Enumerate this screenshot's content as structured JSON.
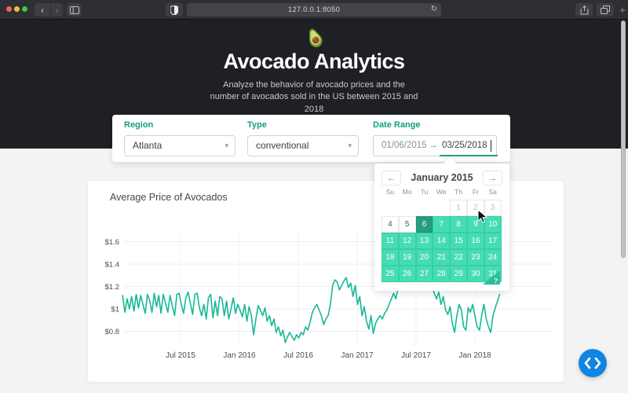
{
  "browser": {
    "url": "127.0.0.1:8050"
  },
  "icons": {
    "back": "‹",
    "forward": "›",
    "reload": "↻",
    "new_tab": "+",
    "calendar_prev": "←",
    "calendar_next": "→",
    "dropdown_caret": "▾",
    "date_arrow": "→",
    "help": "?"
  },
  "header": {
    "title": "Avocado Analytics",
    "subtitle": "Analyze the behavior of avocado prices and the number of avocados sold in the US between 2015 and 2018"
  },
  "filters": {
    "region": {
      "label": "Region",
      "value": "Atlanta"
    },
    "type": {
      "label": "Type",
      "value": "conventional"
    },
    "date_range": {
      "label": "Date Range",
      "start": "01/06/2015",
      "end": "03/25/2018"
    }
  },
  "calendar": {
    "month_title": "January 2015",
    "weekdays": [
      "Su",
      "Mo",
      "Tu",
      "We",
      "Th",
      "Fr",
      "Sa"
    ],
    "rows": [
      [
        null,
        null,
        null,
        null,
        {
          "d": "1",
          "state": "outside"
        },
        {
          "d": "2",
          "state": "outside"
        },
        {
          "d": "3",
          "state": "outside"
        }
      ],
      [
        {
          "d": "4",
          "state": "default"
        },
        {
          "d": "5",
          "state": "default"
        },
        {
          "d": "6",
          "state": "sel-start"
        },
        {
          "d": "7",
          "state": "span"
        },
        {
          "d": "8",
          "state": "span"
        },
        {
          "d": "9",
          "state": "span"
        },
        {
          "d": "10",
          "state": "span"
        }
      ],
      [
        {
          "d": "11",
          "state": "span"
        },
        {
          "d": "12",
          "state": "span"
        },
        {
          "d": "13",
          "state": "span"
        },
        {
          "d": "14",
          "state": "span"
        },
        {
          "d": "15",
          "state": "span"
        },
        {
          "d": "16",
          "state": "span"
        },
        {
          "d": "17",
          "state": "span"
        }
      ],
      [
        {
          "d": "18",
          "state": "span"
        },
        {
          "d": "19",
          "state": "span"
        },
        {
          "d": "20",
          "state": "span"
        },
        {
          "d": "21",
          "state": "span"
        },
        {
          "d": "22",
          "state": "span"
        },
        {
          "d": "23",
          "state": "span"
        },
        {
          "d": "24",
          "state": "span"
        }
      ],
      [
        {
          "d": "25",
          "state": "span"
        },
        {
          "d": "26",
          "state": "span"
        },
        {
          "d": "27",
          "state": "span"
        },
        {
          "d": "28",
          "state": "span"
        },
        {
          "d": "29",
          "state": "span"
        },
        {
          "d": "30",
          "state": "span"
        },
        {
          "d": "31",
          "state": "span"
        }
      ]
    ]
  },
  "chart_data": {
    "type": "line",
    "title": "Average Price of Avocados",
    "xlabel": "",
    "ylabel": "",
    "grid": true,
    "x_start": "2015-01-04",
    "x_step_days": 7,
    "xticks": {
      "labels": [
        "Jul 2015",
        "Jan 2016",
        "Jul 2016",
        "Jan 2017",
        "Jul 2017",
        "Jan 2018"
      ],
      "year_offsets": [
        0.5,
        1.0,
        1.5,
        2.0,
        2.5,
        3.0
      ]
    },
    "yticks": {
      "values": [
        0.8,
        1.0,
        1.2,
        1.4,
        1.6
      ],
      "labels": [
        "$0.8",
        "$1",
        "$1.2",
        "$1.4",
        "$1.6"
      ]
    },
    "ylim": [
      0.62,
      1.72
    ],
    "series": [
      {
        "name": "Average Price",
        "color": "#17B897",
        "values": [
          1.12,
          0.97,
          1.09,
          1.0,
          1.11,
          0.98,
          1.13,
          1.01,
          1.12,
          1.04,
          0.96,
          1.13,
          1.07,
          0.97,
          1.14,
          1.02,
          1.12,
          0.96,
          1.13,
          1.05,
          0.97,
          1.12,
          1.03,
          0.94,
          1.13,
          1.14,
          1.04,
          0.96,
          1.1,
          1.15,
          1.05,
          0.95,
          1.13,
          1.14,
          1.01,
          0.94,
          1.04,
          0.91,
          1.1,
          1.13,
          0.92,
          1.07,
          0.94,
          1.11,
          1.09,
          0.94,
          1.07,
          0.91,
          1.0,
          1.1,
          0.96,
          1.04,
          0.99,
          0.93,
          1.04,
          0.89,
          1.02,
          0.94,
          0.77,
          0.91,
          1.03,
          0.99,
          0.94,
          1.01,
          0.89,
          0.94,
          0.85,
          0.91,
          0.79,
          0.84,
          0.76,
          0.81,
          0.7,
          0.75,
          0.79,
          0.75,
          0.72,
          0.77,
          0.74,
          0.79,
          0.77,
          0.84,
          0.81,
          0.88,
          0.97,
          1.01,
          1.04,
          0.99,
          0.94,
          0.86,
          0.91,
          0.94,
          1.04,
          1.21,
          1.26,
          1.24,
          1.17,
          1.21,
          1.25,
          1.28,
          1.19,
          1.23,
          1.11,
          1.21,
          1.04,
          1.11,
          0.94,
          1.02,
          0.89,
          0.82,
          0.94,
          0.78,
          0.87,
          0.91,
          0.94,
          0.91,
          0.96,
          0.99,
          1.04,
          1.09,
          1.14,
          1.09,
          1.19,
          1.24,
          1.17,
          1.27,
          1.34,
          1.29,
          1.37,
          1.44,
          1.39,
          1.34,
          1.41,
          1.37,
          1.29,
          1.24,
          1.17,
          1.21,
          1.14,
          1.09,
          1.15,
          1.04,
          1.11,
          0.99,
          0.95,
          1.02,
          0.87,
          0.79,
          0.94,
          1.04,
          0.99,
          0.84,
          0.81,
          1.01,
          0.97,
          1.04,
          0.94,
          0.84,
          0.81,
          0.94,
          1.04,
          0.91,
          0.84,
          0.79,
          0.94,
          1.01,
          1.07,
          1.13
        ]
      }
    ]
  }
}
